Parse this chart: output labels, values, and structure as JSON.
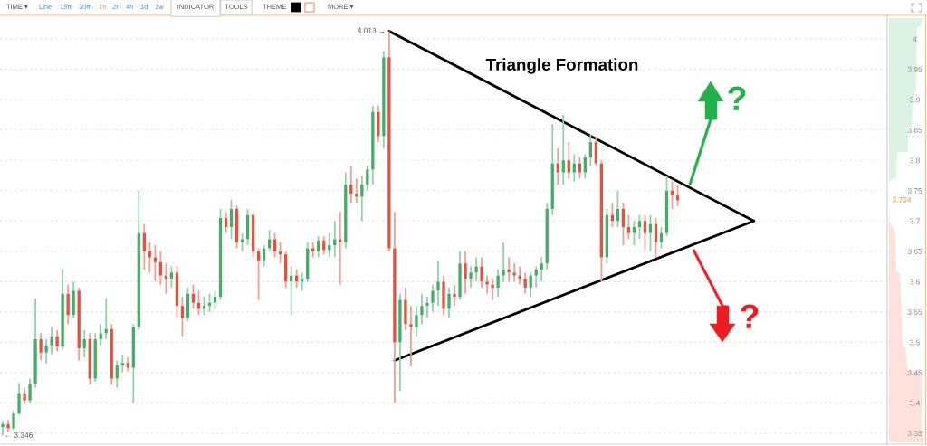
{
  "chart_data": {
    "type": "candlestick",
    "title": "Triangle Formation",
    "categories": [
      null,
      null,
      null,
      null,
      null,
      null,
      null,
      null,
      null,
      null,
      null,
      null,
      null,
      null,
      null,
      null,
      null,
      null,
      null,
      null,
      null,
      null,
      null,
      null,
      null,
      null,
      null,
      null,
      null,
      null,
      null,
      null,
      null,
      null,
      null,
      null,
      null,
      null,
      null,
      null,
      null,
      null,
      null,
      null,
      null,
      null,
      null,
      null,
      null,
      null,
      null,
      null,
      null,
      null,
      null,
      null,
      null,
      null,
      null,
      null,
      null,
      null,
      null,
      null,
      null,
      null,
      null,
      null,
      null,
      null,
      null,
      null,
      null,
      null,
      null,
      null,
      null,
      null,
      null,
      null,
      null,
      null,
      null,
      null,
      null,
      null,
      null,
      null,
      null,
      null,
      null,
      null,
      null,
      null,
      null,
      null,
      null,
      null,
      null,
      null,
      null,
      null,
      null,
      null,
      null,
      null,
      null,
      null,
      null,
      null,
      null,
      null,
      null,
      null,
      null,
      null,
      null,
      null,
      null,
      null,
      null,
      null,
      null,
      null,
      null,
      null,
      null,
      null,
      null,
      null,
      null,
      null,
      null,
      null,
      null,
      null,
      null,
      null,
      null,
      null,
      null,
      null,
      null,
      null,
      null,
      null,
      null,
      null,
      null,
      null,
      null,
      null,
      null,
      null,
      null,
      null,
      null,
      null,
      null,
      null,
      null,
      null,
      null
    ],
    "ohlc": [
      [
        3.36,
        3.37,
        3.346,
        3.365
      ],
      [
        3.365,
        3.372,
        3.352,
        3.358
      ],
      [
        3.358,
        3.388,
        3.355,
        3.383
      ],
      [
        3.383,
        3.433,
        3.38,
        3.416
      ],
      [
        3.416,
        3.425,
        3.398,
        3.404
      ],
      [
        3.404,
        3.44,
        3.4,
        3.432
      ],
      [
        3.432,
        3.572,
        3.425,
        3.505
      ],
      [
        3.505,
        3.515,
        3.47,
        3.483
      ],
      [
        3.483,
        3.505,
        3.465,
        3.495
      ],
      [
        3.495,
        3.525,
        3.48,
        3.51
      ],
      [
        3.51,
        3.52,
        3.485,
        3.493
      ],
      [
        3.493,
        3.62,
        3.488,
        3.58
      ],
      [
        3.58,
        3.595,
        3.53,
        3.545
      ],
      [
        3.545,
        3.6,
        3.54,
        3.585
      ],
      [
        3.585,
        3.59,
        3.47,
        3.49
      ],
      [
        3.49,
        3.52,
        3.475,
        3.505
      ],
      [
        3.505,
        3.515,
        3.43,
        3.44
      ],
      [
        3.44,
        3.515,
        3.435,
        3.505
      ],
      [
        3.505,
        3.53,
        3.495,
        3.515
      ],
      [
        3.515,
        3.572,
        3.505,
        3.522
      ],
      [
        3.522,
        3.53,
        3.43,
        3.44
      ],
      [
        3.44,
        3.47,
        3.425,
        3.462
      ],
      [
        3.462,
        3.48,
        3.45,
        3.466
      ],
      [
        3.466,
        3.475,
        3.452,
        3.458
      ],
      [
        3.458,
        3.53,
        3.4,
        3.525
      ],
      [
        3.525,
        3.75,
        3.52,
        3.68
      ],
      [
        3.68,
        3.695,
        3.62,
        3.65
      ],
      [
        3.65,
        3.665,
        3.615,
        3.64
      ],
      [
        3.64,
        3.66,
        3.6,
        3.632
      ],
      [
        3.632,
        3.65,
        3.595,
        3.61
      ],
      [
        3.61,
        3.63,
        3.58,
        3.605
      ],
      [
        3.605,
        3.625,
        3.59,
        3.615
      ],
      [
        3.615,
        3.625,
        3.54,
        3.56
      ],
      [
        3.56,
        3.575,
        3.51,
        3.54
      ],
      [
        3.54,
        3.59,
        3.535,
        3.58
      ],
      [
        3.58,
        3.595,
        3.555,
        3.565
      ],
      [
        3.565,
        3.585,
        3.545,
        3.555
      ],
      [
        3.555,
        3.575,
        3.545,
        3.56
      ],
      [
        3.56,
        3.58,
        3.55,
        3.565
      ],
      [
        3.565,
        3.585,
        3.555,
        3.575
      ],
      [
        3.575,
        3.72,
        3.57,
        3.705
      ],
      [
        3.705,
        3.715,
        3.68,
        3.69
      ],
      [
        3.69,
        3.735,
        3.67,
        3.72
      ],
      [
        3.72,
        3.725,
        3.655,
        3.665
      ],
      [
        3.665,
        3.68,
        3.65,
        3.67
      ],
      [
        3.67,
        3.72,
        3.66,
        3.71
      ],
      [
        3.71,
        3.715,
        3.64,
        3.65
      ],
      [
        3.65,
        3.655,
        3.57,
        3.635
      ],
      [
        3.635,
        3.66,
        3.625,
        3.655
      ],
      [
        3.655,
        3.685,
        3.65,
        3.67
      ],
      [
        3.67,
        3.68,
        3.64,
        3.65
      ],
      [
        3.65,
        3.665,
        3.63,
        3.645
      ],
      [
        3.645,
        3.65,
        3.59,
        3.6
      ],
      [
        3.6,
        3.625,
        3.545,
        3.61
      ],
      [
        3.61,
        3.62,
        3.59,
        3.6
      ],
      [
        3.6,
        3.615,
        3.585,
        3.605
      ],
      [
        3.605,
        3.665,
        3.6,
        3.655
      ],
      [
        3.655,
        3.665,
        3.64,
        3.65
      ],
      [
        3.65,
        3.675,
        3.64,
        3.668
      ],
      [
        3.668,
        3.675,
        3.645,
        3.652
      ],
      [
        3.652,
        3.68,
        3.64,
        3.66
      ],
      [
        3.66,
        3.7,
        3.64,
        3.67
      ],
      [
        3.67,
        3.715,
        3.595,
        3.665
      ],
      [
        3.665,
        3.78,
        3.655,
        3.76
      ],
      [
        3.76,
        3.79,
        3.73,
        3.745
      ],
      [
        3.745,
        3.77,
        3.73,
        3.74
      ],
      [
        3.74,
        3.775,
        3.7,
        3.76
      ],
      [
        3.76,
        3.79,
        3.75,
        3.785
      ],
      [
        3.785,
        3.89,
        3.76,
        3.88
      ],
      [
        3.88,
        3.89,
        3.83,
        3.84
      ],
      [
        3.84,
        3.98,
        3.82,
        3.97
      ],
      [
        3.97,
        4.013,
        3.65,
        3.655
      ],
      [
        3.655,
        3.715,
        3.4,
        3.5
      ],
      [
        3.5,
        3.58,
        3.42,
        3.57
      ],
      [
        3.57,
        3.59,
        3.52,
        3.53
      ],
      [
        3.53,
        3.56,
        3.46,
        3.525
      ],
      [
        3.525,
        3.56,
        3.51,
        3.545
      ],
      [
        3.545,
        3.58,
        3.53,
        3.56
      ],
      [
        3.56,
        3.575,
        3.54,
        3.565
      ],
      [
        3.565,
        3.595,
        3.55,
        3.585
      ],
      [
        3.585,
        3.635,
        3.56,
        3.6
      ],
      [
        3.6,
        3.61,
        3.545,
        3.555
      ],
      [
        3.555,
        3.59,
        3.54,
        3.58
      ],
      [
        3.58,
        3.595,
        3.56,
        3.575
      ],
      [
        3.575,
        3.65,
        3.57,
        3.63
      ],
      [
        3.63,
        3.65,
        3.58,
        3.605
      ],
      [
        3.605,
        3.625,
        3.59,
        3.615
      ],
      [
        3.615,
        3.64,
        3.6,
        3.625
      ],
      [
        3.625,
        3.64,
        3.59,
        3.6
      ],
      [
        3.6,
        3.61,
        3.58,
        3.595
      ],
      [
        3.595,
        3.605,
        3.57,
        3.59
      ],
      [
        3.59,
        3.62,
        3.575,
        3.61
      ],
      [
        3.61,
        3.665,
        3.6,
        3.62
      ],
      [
        3.62,
        3.64,
        3.6,
        3.615
      ],
      [
        3.615,
        3.63,
        3.6,
        3.61
      ],
      [
        3.61,
        3.625,
        3.595,
        3.605
      ],
      [
        3.605,
        3.615,
        3.58,
        3.59
      ],
      [
        3.59,
        3.615,
        3.575,
        3.61
      ],
      [
        3.61,
        3.625,
        3.59,
        3.62
      ],
      [
        3.62,
        3.64,
        3.6,
        3.63
      ],
      [
        3.63,
        3.73,
        3.62,
        3.72
      ],
      [
        3.72,
        3.86,
        3.71,
        3.795
      ],
      [
        3.795,
        3.82,
        3.76,
        3.78
      ],
      [
        3.78,
        3.875,
        3.76,
        3.8
      ],
      [
        3.8,
        3.83,
        3.77,
        3.78
      ],
      [
        3.78,
        3.81,
        3.765,
        3.795
      ],
      [
        3.795,
        3.805,
        3.77,
        3.78
      ],
      [
        3.78,
        3.81,
        3.77,
        3.805
      ],
      [
        3.805,
        3.842,
        3.79,
        3.83
      ],
      [
        3.83,
        3.84,
        3.79,
        3.795
      ],
      [
        3.795,
        3.8,
        3.6,
        3.64
      ],
      [
        3.64,
        3.72,
        3.63,
        3.71
      ],
      [
        3.71,
        3.73,
        3.69,
        3.7
      ],
      [
        3.7,
        3.75,
        3.69,
        3.72
      ],
      [
        3.72,
        3.73,
        3.66,
        3.69
      ],
      [
        3.69,
        3.71,
        3.67,
        3.68
      ],
      [
        3.68,
        3.7,
        3.66,
        3.69
      ],
      [
        3.69,
        3.71,
        3.67,
        3.7
      ],
      [
        3.7,
        3.71,
        3.65,
        3.68
      ],
      [
        3.68,
        3.71,
        3.65,
        3.695
      ],
      [
        3.695,
        3.705,
        3.64,
        3.665
      ],
      [
        3.665,
        3.69,
        3.655,
        3.68
      ],
      [
        3.68,
        3.774,
        3.675,
        3.75
      ],
      [
        3.75,
        3.765,
        3.72,
        3.742
      ],
      [
        3.742,
        3.76,
        3.725,
        3.734
      ],
      null,
      null,
      null,
      null,
      null,
      null,
      null,
      null,
      null,
      null,
      null,
      null,
      null,
      null,
      null,
      null,
      null,
      null,
      null,
      null,
      null,
      null,
      null,
      null,
      null,
      null,
      null,
      null,
      null,
      null,
      null,
      null,
      null,
      null,
      null,
      null,
      null,
      null
    ],
    "series": [
      {
        "type": "line",
        "color": "#000000",
        "values": [
          null,
          null,
          null,
          null,
          null,
          null,
          null,
          null,
          null,
          null,
          null,
          null,
          null,
          null,
          null,
          null,
          null,
          null,
          null,
          null,
          null,
          null,
          null,
          null,
          null,
          null,
          null,
          null,
          null,
          null,
          null,
          null,
          null,
          null,
          null,
          null,
          null,
          null,
          null,
          null,
          null,
          null,
          null,
          null,
          null,
          null,
          null,
          null,
          null,
          null,
          null,
          null,
          null,
          null,
          null,
          null,
          null,
          null,
          null,
          null,
          null,
          null,
          null,
          null,
          null,
          null,
          null,
          null,
          null,
          null,
          null,
          4.013,
          null,
          null,
          null,
          null,
          null,
          null,
          null,
          null,
          null,
          null,
          null,
          null,
          null,
          null,
          null,
          null,
          null,
          null,
          null,
          null,
          null,
          null,
          null,
          null,
          null,
          null,
          null,
          null,
          null,
          null,
          null,
          null,
          null,
          null,
          null,
          null,
          null,
          null,
          null,
          null,
          null,
          null,
          null,
          null,
          null,
          null,
          null,
          null,
          null,
          null,
          null,
          null,
          null,
          null,
          null,
          null,
          null,
          null,
          null,
          null,
          null,
          null,
          null,
          null,
          null,
          null,
          3.7,
          null,
          null,
          null,
          null,
          null,
          null,
          null,
          null,
          null,
          null,
          null,
          null,
          null,
          null,
          null,
          null,
          null,
          null,
          null,
          null,
          null,
          null,
          null,
          null
        ]
      },
      {
        "type": "line",
        "color": "#000000",
        "values": [
          null,
          null,
          null,
          null,
          null,
          null,
          null,
          null,
          null,
          null,
          null,
          null,
          null,
          null,
          null,
          null,
          null,
          null,
          null,
          null,
          null,
          null,
          null,
          null,
          null,
          null,
          null,
          null,
          null,
          null,
          null,
          null,
          null,
          null,
          null,
          null,
          null,
          null,
          null,
          null,
          null,
          null,
          null,
          null,
          null,
          null,
          null,
          null,
          null,
          null,
          null,
          null,
          null,
          null,
          null,
          null,
          null,
          null,
          null,
          null,
          null,
          null,
          null,
          null,
          null,
          null,
          null,
          null,
          null,
          null,
          null,
          null,
          3.47,
          null,
          null,
          null,
          null,
          null,
          null,
          null,
          null,
          null,
          null,
          null,
          null,
          null,
          null,
          null,
          null,
          null,
          null,
          null,
          null,
          null,
          null,
          null,
          null,
          null,
          null,
          null,
          null,
          null,
          null,
          null,
          null,
          null,
          null,
          null,
          null,
          null,
          null,
          null,
          null,
          null,
          null,
          null,
          null,
          null,
          null,
          null,
          null,
          null,
          null,
          null,
          null,
          null,
          null,
          null,
          null,
          null,
          null,
          null,
          null,
          null,
          null,
          null,
          null,
          null,
          3.7,
          null,
          null,
          null,
          null,
          null,
          null,
          null,
          null,
          null,
          null,
          null,
          null,
          null,
          null,
          null,
          null,
          null,
          null,
          null,
          null,
          null,
          null,
          null,
          null
        ]
      }
    ],
    "ylim": [
      3.332,
      4.039
    ],
    "yticks": [
      3.35,
      3.4,
      3.45,
      3.5,
      3.55,
      3.6,
      3.65,
      3.7,
      3.75,
      3.8,
      3.85,
      3.9,
      3.95,
      4
    ],
    "grid": "y",
    "tick_labels": "y",
    "annotations": [
      "TIME ▾",
      "Line",
      "15m",
      "30m",
      "1h",
      "2h",
      "4h",
      "1d",
      "1w",
      "INDICATOR",
      "TOOLS",
      "THEME",
      "MORE ▾",
      "4.013 →",
      "← 3.346",
      "3.734",
      "?",
      "?"
    ]
  }
}
